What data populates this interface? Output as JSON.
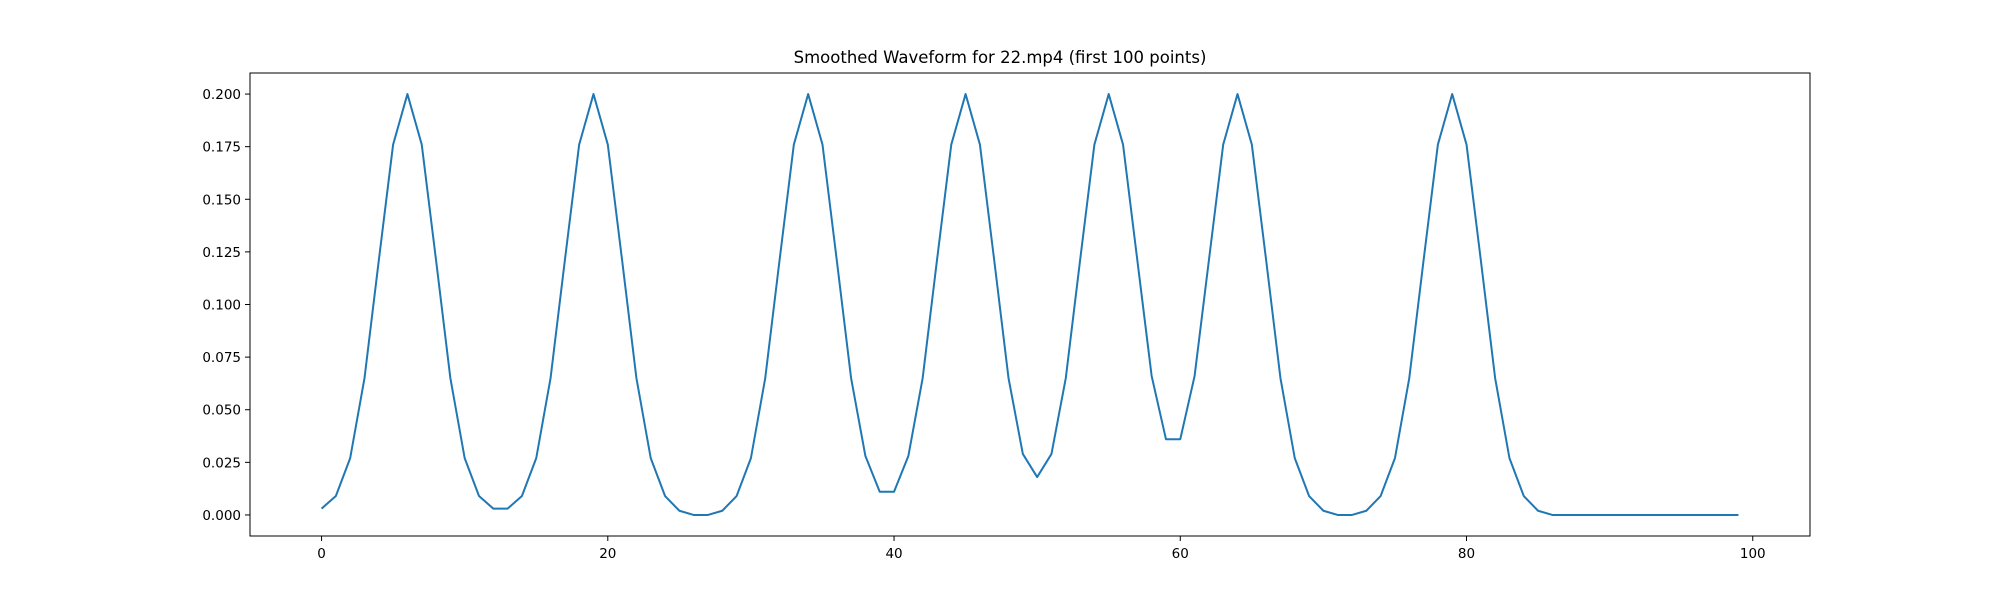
{
  "chart_data": {
    "type": "line",
    "title": "Smoothed Waveform for 22.mp4 (first 100 points)",
    "xlabel": "",
    "ylabel": "",
    "xlim": [
      -5,
      104
    ],
    "ylim": [
      -0.01,
      0.21
    ],
    "xticks": [
      0,
      20,
      40,
      60,
      80,
      100
    ],
    "xtick_labels": [
      "0",
      "20",
      "40",
      "60",
      "80",
      "100"
    ],
    "yticks": [
      0.0,
      0.025,
      0.05,
      0.075,
      0.1,
      0.125,
      0.15,
      0.175,
      0.2
    ],
    "ytick_labels": [
      "0.000",
      "0.025",
      "0.050",
      "0.075",
      "0.100",
      "0.125",
      "0.150",
      "0.175",
      "0.200"
    ],
    "grid": false,
    "series": [
      {
        "color": "#1f77b4",
        "x": [
          0,
          1,
          2,
          3,
          4,
          5,
          6,
          7,
          8,
          9,
          10,
          11,
          12,
          13,
          14,
          15,
          16,
          17,
          18,
          19,
          20,
          21,
          22,
          23,
          24,
          25,
          26,
          27,
          28,
          29,
          30,
          31,
          32,
          33,
          34,
          35,
          36,
          37,
          38,
          39,
          40,
          41,
          42,
          43,
          44,
          45,
          46,
          47,
          48,
          49,
          50,
          51,
          52,
          53,
          54,
          55,
          56,
          57,
          58,
          59,
          60,
          61,
          62,
          63,
          64,
          65,
          66,
          67,
          68,
          69,
          70,
          71,
          72,
          73,
          74,
          75,
          76,
          77,
          78,
          79,
          80,
          81,
          82,
          83,
          84,
          85,
          86,
          87,
          88,
          89,
          90,
          91,
          92,
          93,
          94,
          95,
          96,
          97,
          98,
          99
        ],
        "y": [
          0.003,
          0.009,
          0.027,
          0.065,
          0.121,
          0.176,
          0.2,
          0.176,
          0.121,
          0.065,
          0.027,
          0.009,
          0.003,
          0.003,
          0.009,
          0.027,
          0.065,
          0.121,
          0.176,
          0.2,
          0.176,
          0.121,
          0.065,
          0.027,
          0.009,
          0.002,
          0.0,
          0.0,
          0.002,
          0.009,
          0.027,
          0.065,
          0.121,
          0.176,
          0.2,
          0.176,
          0.121,
          0.065,
          0.028,
          0.011,
          0.011,
          0.028,
          0.065,
          0.121,
          0.176,
          0.2,
          0.176,
          0.121,
          0.065,
          0.029,
          0.018,
          0.029,
          0.065,
          0.121,
          0.176,
          0.2,
          0.176,
          0.121,
          0.066,
          0.036,
          0.036,
          0.066,
          0.121,
          0.176,
          0.2,
          0.176,
          0.121,
          0.065,
          0.027,
          0.009,
          0.002,
          0.0,
          0.0,
          0.002,
          0.009,
          0.027,
          0.065,
          0.121,
          0.176,
          0.2,
          0.176,
          0.121,
          0.065,
          0.027,
          0.009,
          0.002,
          0.0,
          0.0,
          0.0,
          0.0,
          0.0,
          0.0,
          0.0,
          0.0,
          0.0,
          0.0,
          0.0,
          0.0,
          0.0,
          0.0
        ]
      }
    ]
  }
}
